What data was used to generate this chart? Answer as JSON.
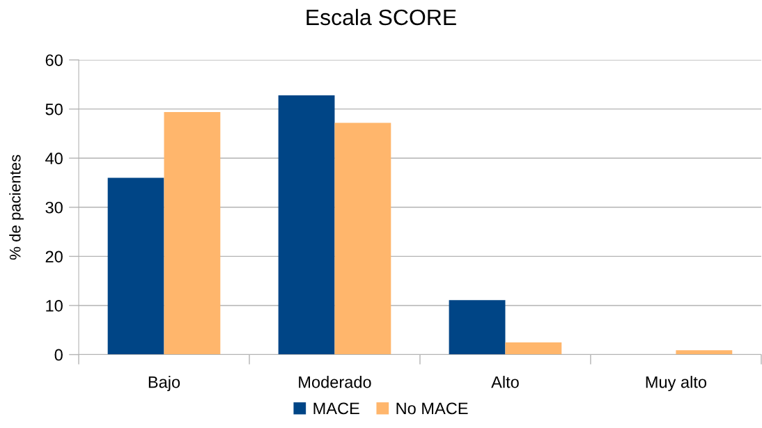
{
  "chart_data": {
    "type": "bar",
    "title": "Escala SCORE",
    "ylabel": "% de pacientes",
    "categories": [
      "Bajo",
      "Moderado",
      "Alto",
      "Muy alto"
    ],
    "series": [
      {
        "name": "MACE",
        "color": "#004586",
        "values": [
          36.0,
          52.8,
          11.1,
          0
        ]
      },
      {
        "name": "No MACE",
        "color": "#ffb66c",
        "values": [
          49.4,
          47.2,
          2.5,
          0.9
        ]
      }
    ],
    "ylim": [
      0,
      60
    ],
    "yticks": [
      0,
      10,
      20,
      30,
      40,
      50,
      60
    ],
    "grid": "y",
    "legend": "bottom"
  }
}
